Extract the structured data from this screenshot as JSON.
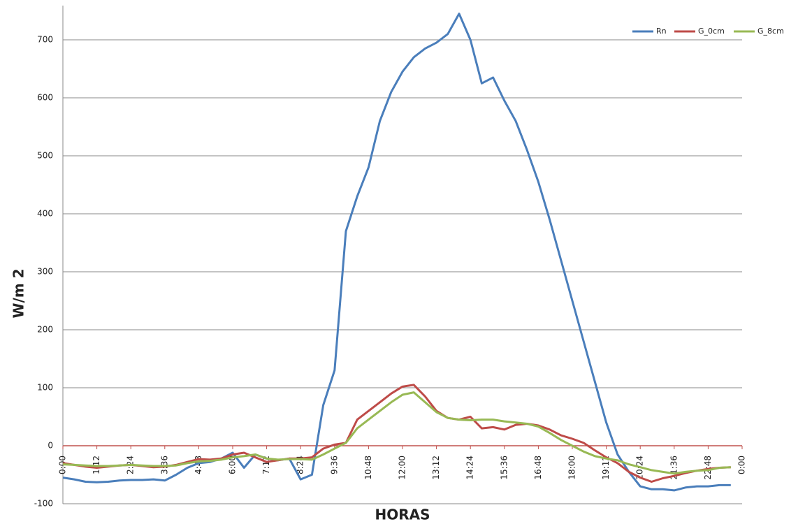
{
  "chart_data": {
    "type": "line",
    "y_label": "W/m 2",
    "x_label": "HORAS",
    "x": [
      0,
      24,
      48,
      72,
      96,
      120,
      144,
      168,
      192,
      216,
      240,
      264,
      288,
      312,
      336,
      360,
      384,
      408,
      432,
      456,
      480,
      504,
      528,
      552,
      576,
      600,
      624,
      648,
      672,
      696,
      720,
      744,
      768,
      792,
      816,
      840,
      864,
      888,
      912,
      936,
      960,
      984,
      1008,
      1032,
      1056,
      1080,
      1104,
      1128,
      1152,
      1176,
      1200,
      1224,
      1248,
      1272,
      1296,
      1320,
      1344,
      1368,
      1392,
      1416
    ],
    "series": [
      {
        "name": "Rn",
        "color": "#4a7ebb",
        "values": [
          -55,
          -58,
          -62,
          -63,
          -62,
          -60,
          -59,
          -59,
          -58,
          -60,
          -50,
          -38,
          -30,
          -28,
          -22,
          -12,
          -38,
          -15,
          -22,
          -25,
          -22,
          -58,
          -50,
          70,
          130,
          370,
          430,
          480,
          560,
          610,
          645,
          670,
          685,
          695,
          710,
          745,
          700,
          625,
          635,
          595,
          560,
          510,
          455,
          390,
          320,
          250,
          180,
          110,
          40,
          -15,
          -45,
          -70,
          -75,
          -75,
          -77,
          -72,
          -70,
          -70,
          -68,
          -68
        ]
      },
      {
        "name": "G_0cm",
        "color": "#be4b48",
        "values": [
          -30,
          -33,
          -36,
          -38,
          -36,
          -34,
          -33,
          -35,
          -37,
          -36,
          -33,
          -28,
          -23,
          -24,
          -22,
          -15,
          -12,
          -20,
          -28,
          -25,
          -22,
          -22,
          -20,
          -5,
          2,
          5,
          45,
          60,
          75,
          90,
          102,
          105,
          85,
          60,
          48,
          45,
          50,
          30,
          32,
          28,
          36,
          38,
          35,
          28,
          18,
          12,
          5,
          -8,
          -20,
          -30,
          -45,
          -55,
          -62,
          -56,
          -52,
          -47,
          -43,
          -40,
          -38,
          -37
        ]
      },
      {
        "name": "G_8cm",
        "color": "#98b954",
        "values": [
          -32,
          -33,
          -34,
          -35,
          -35,
          -34,
          -33,
          -34,
          -35,
          -35,
          -34,
          -30,
          -27,
          -26,
          -24,
          -20,
          -18,
          -15,
          -22,
          -24,
          -23,
          -23,
          -24,
          -15,
          -5,
          5,
          30,
          45,
          60,
          75,
          88,
          92,
          75,
          58,
          48,
          45,
          44,
          45,
          45,
          42,
          40,
          38,
          33,
          22,
          10,
          0,
          -10,
          -18,
          -22,
          -25,
          -32,
          -37,
          -42,
          -45,
          -48,
          -45,
          -43,
          -42,
          -38,
          -37
        ]
      }
    ],
    "xlim": [
      0,
      1440
    ],
    "xticks": [
      {
        "value": 0,
        "label": "0:00"
      },
      {
        "value": 72,
        "label": "1:12"
      },
      {
        "value": 144,
        "label": "2:24"
      },
      {
        "value": 216,
        "label": "3:36"
      },
      {
        "value": 288,
        "label": "4:48"
      },
      {
        "value": 360,
        "label": "6:00"
      },
      {
        "value": 432,
        "label": "7:12"
      },
      {
        "value": 504,
        "label": "8:24"
      },
      {
        "value": 576,
        "label": "9:36"
      },
      {
        "value": 648,
        "label": "10:48"
      },
      {
        "value": 720,
        "label": "12:00"
      },
      {
        "value": 792,
        "label": "13:12"
      },
      {
        "value": 864,
        "label": "14:24"
      },
      {
        "value": 936,
        "label": "15:36"
      },
      {
        "value": 1008,
        "label": "16:48"
      },
      {
        "value": 1080,
        "label": "18:00"
      },
      {
        "value": 1152,
        "label": "19:12"
      },
      {
        "value": 1224,
        "label": "20:24"
      },
      {
        "value": 1296,
        "label": "21:36"
      },
      {
        "value": 1368,
        "label": "22:48"
      },
      {
        "value": 1440,
        "label": "0:00"
      }
    ],
    "ylim": [
      -100,
      750
    ],
    "yticks": [
      -100,
      0,
      100,
      200,
      300,
      400,
      500,
      600,
      700
    ],
    "grid": true,
    "zero_line_color": "#c0504d",
    "legend": "top-right"
  }
}
